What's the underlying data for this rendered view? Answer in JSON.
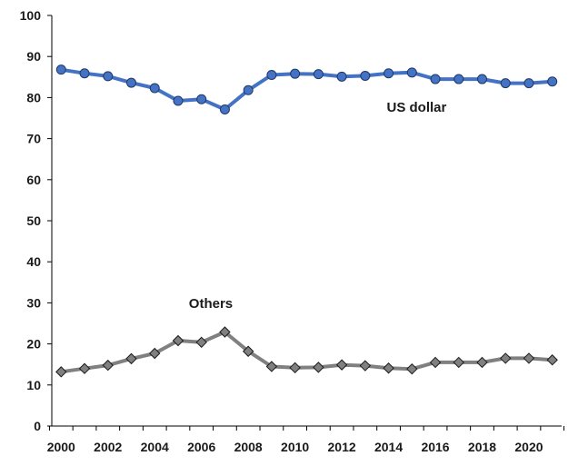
{
  "chart_data": {
    "type": "line",
    "title": "",
    "xlabel": "",
    "ylabel": "",
    "x": [
      2000,
      2001,
      2002,
      2003,
      2004,
      2005,
      2006,
      2007,
      2008,
      2009,
      2010,
      2011,
      2012,
      2013,
      2014,
      2015,
      2016,
      2017,
      2018,
      2019,
      2020,
      2021
    ],
    "xlim": [
      1999.6,
      2021.4
    ],
    "ylim": [
      0,
      100
    ],
    "y_ticks": [
      "0",
      "10",
      "20",
      "30",
      "40",
      "50",
      "60",
      "70",
      "80",
      "90",
      "100"
    ],
    "x_ticks": [
      "2000",
      "2002",
      "2004",
      "2006",
      "2008",
      "2010",
      "2012",
      "2014",
      "2016",
      "2018",
      "2020"
    ],
    "grid": false,
    "legend": "none",
    "series": [
      {
        "name": "US dollar",
        "color": "#4472C4",
        "marker": "circle",
        "values": [
          86.8,
          85.9,
          85.2,
          83.6,
          82.3,
          79.2,
          79.6,
          77.1,
          81.8,
          85.5,
          85.8,
          85.7,
          85.1,
          85.3,
          85.9,
          86.1,
          84.5,
          84.5,
          84.5,
          83.5,
          83.5,
          83.9
        ]
      },
      {
        "name": "Others",
        "color": "#808080",
        "marker": "diamond",
        "values": [
          13.2,
          14.0,
          14.8,
          16.4,
          17.7,
          20.8,
          20.4,
          22.9,
          18.2,
          14.5,
          14.2,
          14.3,
          14.9,
          14.7,
          14.1,
          13.9,
          15.5,
          15.5,
          15.5,
          16.5,
          16.5,
          16.1
        ]
      }
    ]
  }
}
